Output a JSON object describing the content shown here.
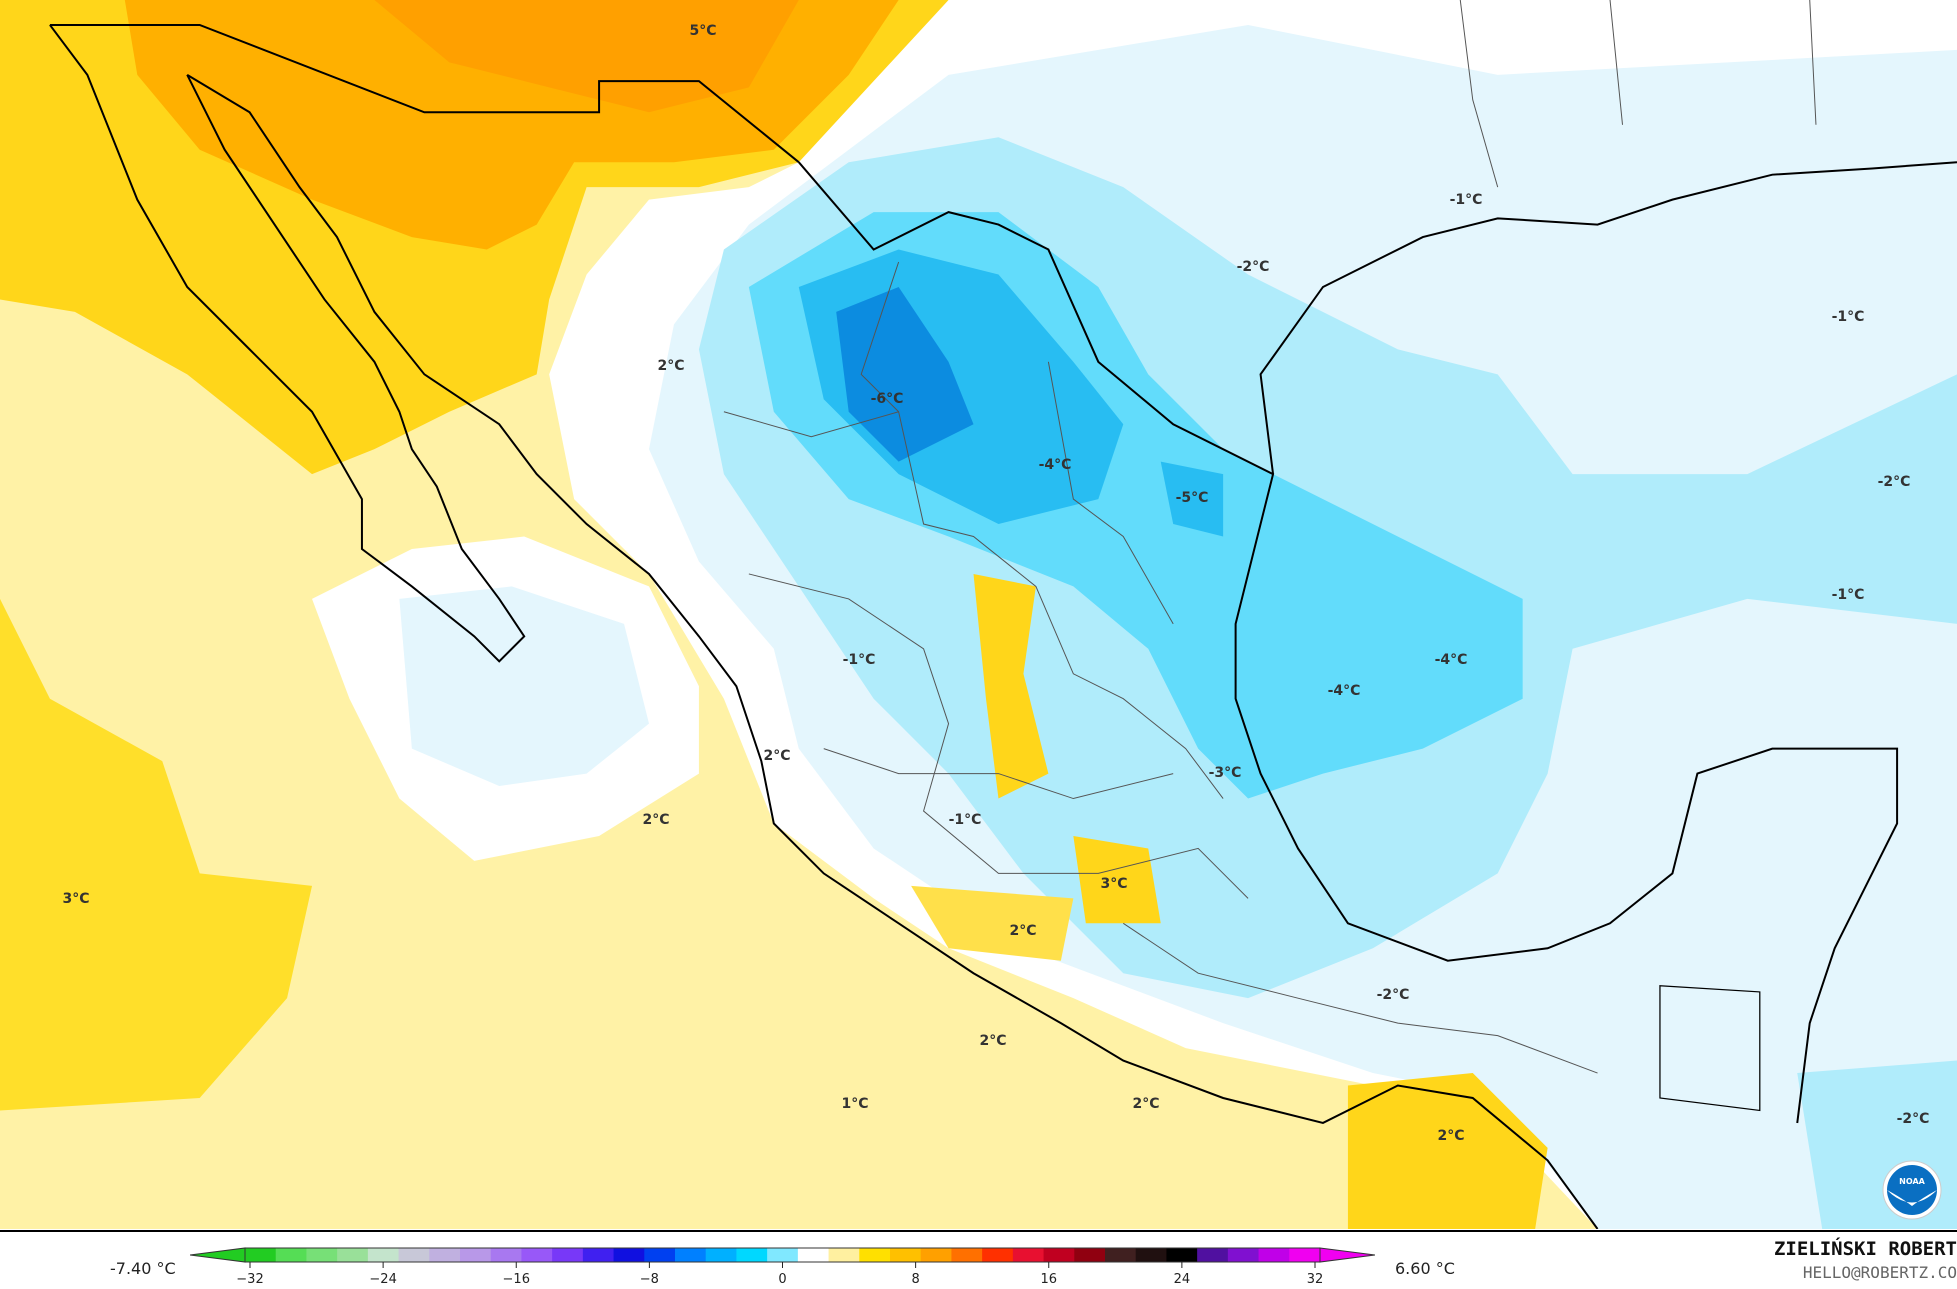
{
  "map": {
    "labels": [
      {
        "text": "5°C",
        "lon_lat_hint": "north-mexico-border"
      },
      {
        "text": "-1°C"
      },
      {
        "text": "-2°C"
      },
      {
        "text": "-1°C"
      },
      {
        "text": "2°C"
      },
      {
        "text": "-6°C"
      },
      {
        "text": "-4°C"
      },
      {
        "text": "-5°C"
      },
      {
        "text": "-2°C"
      },
      {
        "text": "-1°C"
      },
      {
        "text": "-4°C"
      },
      {
        "text": "-1°C"
      },
      {
        "text": "-4°C"
      },
      {
        "text": "2°C"
      },
      {
        "text": "-3°C"
      },
      {
        "text": "2°C"
      },
      {
        "text": "-1°C"
      },
      {
        "text": "3°C"
      },
      {
        "text": "3°C"
      },
      {
        "text": "2°C"
      },
      {
        "text": "-2°C"
      },
      {
        "text": "2°C"
      },
      {
        "text": "1°C"
      },
      {
        "text": "2°C"
      },
      {
        "text": "2°C"
      },
      {
        "text": "-2°C"
      }
    ],
    "logo": "NOAA"
  },
  "legend": {
    "min_label": "-7.40 °C",
    "max_label": "6.60 °C",
    "ticks": [
      "−32",
      "−24",
      "−16",
      "−8",
      "0",
      "8",
      "16",
      "24",
      "32"
    ],
    "range": [
      -32,
      32
    ],
    "colors": [
      "#22cc22",
      "#55dd55",
      "#77e077",
      "#99e099",
      "#c4e4cc",
      "#c8c8d8",
      "#c0b0e0",
      "#b898e8",
      "#a878f0",
      "#9858f8",
      "#7838f8",
      "#4020f0",
      "#1010e0",
      "#0040f0",
      "#0080ff",
      "#00b0ff",
      "#00d8ff",
      "#80e8ff",
      "#ffffff",
      "#fff0a0",
      "#ffe000",
      "#ffc000",
      "#ffa000",
      "#ff7000",
      "#ff3000",
      "#e81030",
      "#c00020",
      "#900010",
      "#402020",
      "#201010",
      "#000000",
      "#5010a0",
      "#8010d0",
      "#c000e8",
      "#f000f0"
    ]
  },
  "credits": {
    "author": "ZIELIŃSKI ROBERT",
    "email": "HELLO@ROBERTZ.CO"
  }
}
